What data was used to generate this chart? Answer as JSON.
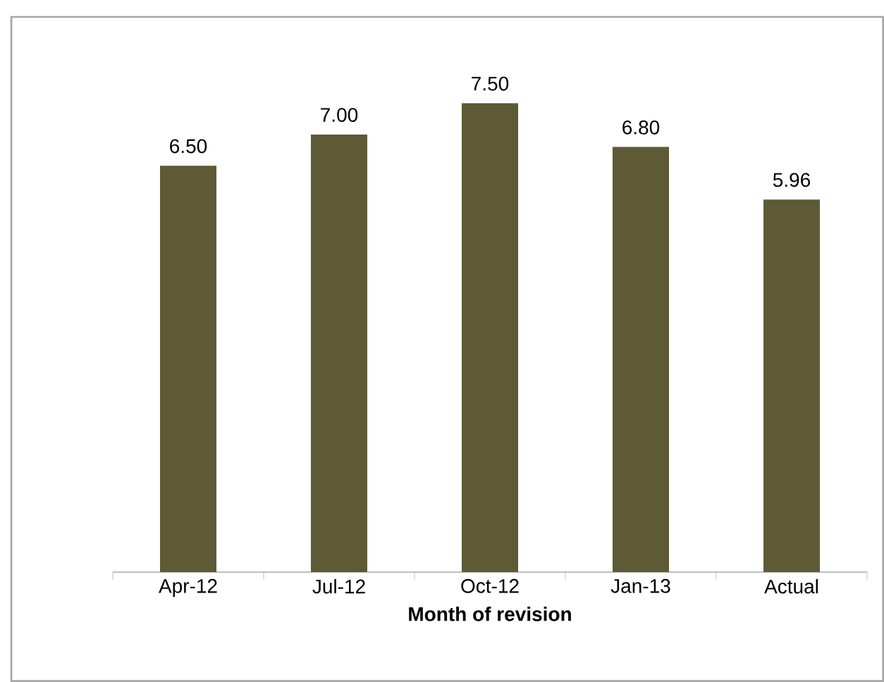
{
  "chart_data": {
    "type": "bar",
    "xlabel": "Month of revision",
    "categories": [
      "Apr-12",
      "Jul-12",
      "Oct-12",
      "Jan-13",
      "Actual"
    ],
    "values": [
      6.5,
      7.0,
      7.5,
      6.8,
      5.96
    ],
    "value_labels": [
      "6.50",
      "7.00",
      "7.50",
      "6.80",
      "5.96"
    ],
    "color": "#5e5a35"
  }
}
